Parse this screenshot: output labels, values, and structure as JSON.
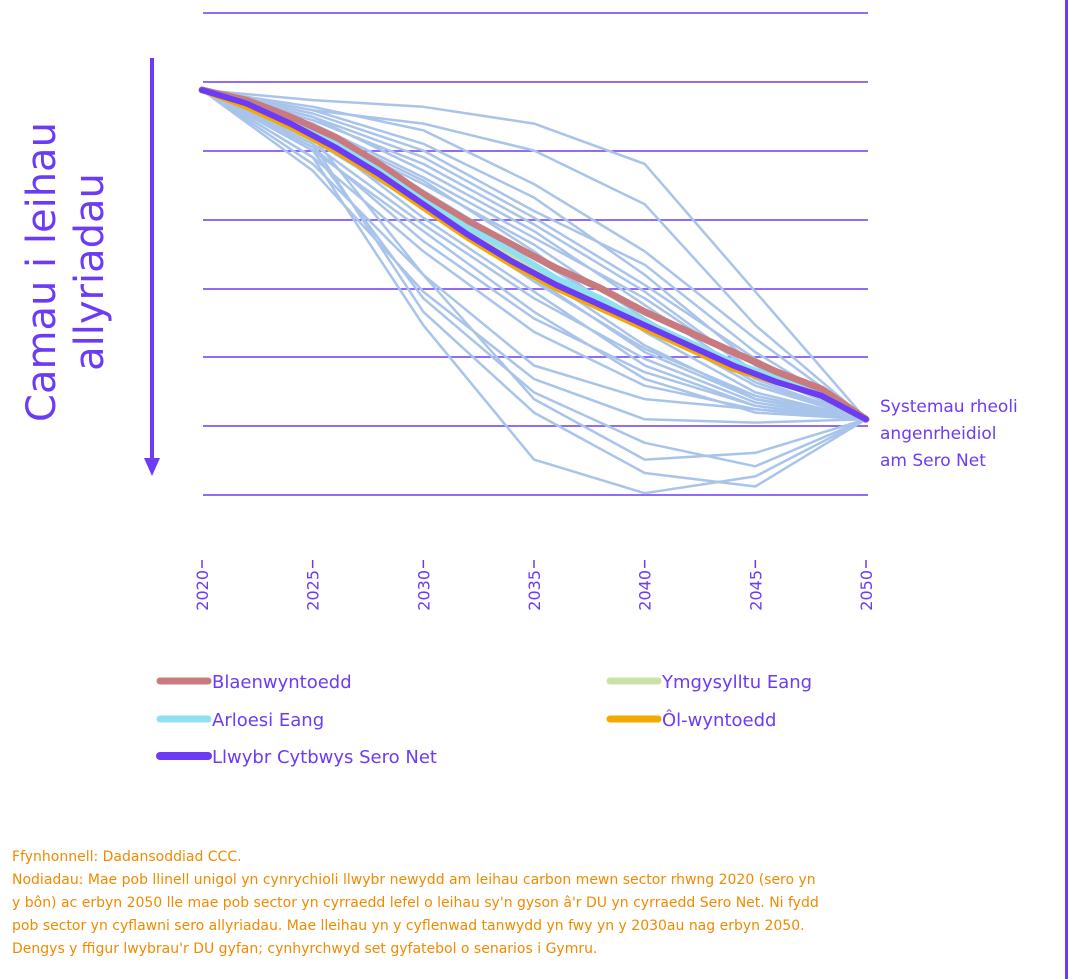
{
  "chart_data": {
    "type": "line",
    "title": "",
    "ylabel_lines": [
      "Camau i leihau",
      "allyriadau"
    ],
    "xlabel": "",
    "x_ticks": [
      "2020",
      "2025",
      "2030",
      "2035",
      "2040",
      "2045",
      "2050"
    ],
    "xlim": [
      2020,
      2050
    ],
    "ylim": [
      0,
      1
    ],
    "grid": true,
    "end_label_lines": [
      "Systemau rheoli",
      "angenrheidiol",
      "am Sero Net"
    ],
    "highlight_series": [
      {
        "name": "Blaenwyntoedd",
        "color": "#C97A7E",
        "x": [
          2020,
          2022,
          2024,
          2026,
          2028,
          2030,
          2032,
          2034,
          2036,
          2038,
          2040,
          2042,
          2044,
          2046,
          2048,
          2050
        ],
        "y": [
          0.0,
          0.03,
          0.08,
          0.14,
          0.22,
          0.31,
          0.39,
          0.46,
          0.53,
          0.59,
          0.66,
          0.72,
          0.78,
          0.84,
          0.89,
          0.98
        ]
      },
      {
        "name": "Ymgysylltu Eang",
        "color": "#C8E3A8",
        "x": [
          2020,
          2022,
          2024,
          2026,
          2028,
          2030,
          2032,
          2034,
          2036,
          2038,
          2040,
          2042,
          2044,
          2046,
          2048,
          2050
        ],
        "y": [
          0.0,
          0.05,
          0.11,
          0.18,
          0.25,
          0.34,
          0.42,
          0.5,
          0.57,
          0.63,
          0.7,
          0.76,
          0.82,
          0.87,
          0.91,
          0.98
        ]
      },
      {
        "name": "Arloesi Eang",
        "color": "#8FE0F0",
        "x": [
          2020,
          2022,
          2024,
          2026,
          2028,
          2030,
          2032,
          2034,
          2036,
          2038,
          2040,
          2042,
          2044,
          2046,
          2048,
          2050
        ],
        "y": [
          0.0,
          0.04,
          0.1,
          0.16,
          0.24,
          0.33,
          0.41,
          0.48,
          0.56,
          0.62,
          0.69,
          0.75,
          0.81,
          0.86,
          0.91,
          0.98
        ]
      },
      {
        "name": "Ôl-wyntoedd",
        "color": "#F5A800",
        "x": [
          2020,
          2022,
          2024,
          2026,
          2028,
          2030,
          2032,
          2034,
          2036,
          2038,
          2040,
          2042,
          2044,
          2046,
          2048,
          2050
        ],
        "y": [
          0.0,
          0.05,
          0.11,
          0.18,
          0.26,
          0.35,
          0.44,
          0.52,
          0.59,
          0.65,
          0.71,
          0.77,
          0.83,
          0.87,
          0.91,
          0.98
        ]
      },
      {
        "name": "Llwybr Cytbwys Sero Net",
        "color": "#6C3BF5",
        "x": [
          2020,
          2022,
          2024,
          2026,
          2028,
          2030,
          2032,
          2034,
          2036,
          2038,
          2040,
          2042,
          2044,
          2046,
          2048,
          2050
        ],
        "y": [
          0.0,
          0.04,
          0.1,
          0.17,
          0.25,
          0.34,
          0.43,
          0.51,
          0.58,
          0.64,
          0.7,
          0.76,
          0.82,
          0.87,
          0.91,
          0.98
        ]
      }
    ],
    "background_series": {
      "color": "#A9C4EA",
      "x": [
        2020,
        2025,
        2030,
        2035,
        2040,
        2045,
        2050
      ],
      "lines": [
        [
          0.0,
          0.12,
          0.34,
          0.56,
          0.78,
          0.92,
          0.98
        ],
        [
          0.0,
          0.1,
          0.26,
          0.44,
          0.62,
          0.84,
          0.98
        ],
        [
          0.0,
          0.08,
          0.2,
          0.38,
          0.58,
          0.8,
          0.98
        ],
        [
          0.0,
          0.16,
          0.4,
          0.62,
          0.8,
          0.93,
          0.98
        ],
        [
          0.0,
          0.14,
          0.3,
          0.5,
          0.7,
          0.88,
          0.98
        ],
        [
          0.0,
          0.2,
          0.48,
          0.72,
          0.88,
          0.95,
          0.98
        ],
        [
          0.0,
          0.06,
          0.16,
          0.32,
          0.55,
          0.82,
          0.98
        ],
        [
          0.0,
          0.18,
          0.42,
          0.66,
          0.86,
          0.96,
          0.98
        ],
        [
          0.0,
          0.05,
          0.12,
          0.28,
          0.48,
          0.74,
          0.98
        ],
        [
          0.0,
          0.12,
          0.28,
          0.46,
          0.68,
          0.87,
          0.98
        ],
        [
          0.0,
          0.1,
          0.3,
          0.54,
          0.76,
          0.92,
          0.98
        ],
        [
          0.0,
          0.15,
          0.35,
          0.57,
          0.77,
          0.91,
          0.98
        ],
        [
          0.0,
          0.08,
          0.24,
          0.42,
          0.64,
          0.86,
          0.98
        ],
        [
          0.0,
          0.13,
          0.38,
          0.6,
          0.82,
          0.94,
          0.98
        ],
        [
          0.0,
          0.22,
          0.55,
          0.82,
          0.92,
          0.95,
          0.98
        ],
        [
          0.0,
          0.18,
          0.62,
          0.9,
          1.05,
          1.12,
          0.98
        ],
        [
          0.0,
          0.16,
          0.66,
          0.96,
          1.14,
          1.18,
          0.98
        ],
        [
          0.0,
          0.2,
          0.7,
          1.1,
          1.2,
          1.15,
          0.98
        ],
        [
          0.0,
          0.14,
          0.55,
          0.92,
          1.1,
          1.08,
          0.98
        ],
        [
          0.0,
          0.24,
          0.6,
          0.86,
          0.98,
          0.99,
          0.98
        ],
        [
          0.0,
          0.06,
          0.1,
          0.18,
          0.34,
          0.7,
          0.98
        ],
        [
          0.0,
          0.03,
          0.05,
          0.1,
          0.22,
          0.6,
          0.98
        ],
        [
          0.0,
          0.09,
          0.22,
          0.4,
          0.6,
          0.84,
          0.98
        ],
        [
          0.0,
          0.11,
          0.27,
          0.48,
          0.72,
          0.9,
          0.98
        ],
        [
          0.0,
          0.17,
          0.45,
          0.68,
          0.84,
          0.94,
          0.98
        ],
        [
          0.0,
          0.07,
          0.18,
          0.36,
          0.52,
          0.78,
          0.98
        ]
      ]
    }
  },
  "notes": {
    "source": "Ffynhonnell: Dadansoddiad CCC.",
    "lines": [
      "Nodiadau: Mae pob llinell unigol yn cynrychioli llwybr newydd am leihau carbon mewn sector rhwng 2020 (sero yn",
      "y bôn) ac erbyn 2050 lle mae pob sector yn cyrraedd lefel o leihau sy'n gyson â'r DU yn cyrraedd Sero Net. Ni fydd",
      "pob sector yn cyflawni sero allyriadau. Mae lleihau yn y cyflenwad tanwydd yn fwy yn y 2030au nag erbyn 2050.",
      "Dengys y ffigur lwybrau'r DU gyfan; cynhyrchwyd set gyfatebol o senarios i Gymru."
    ]
  }
}
